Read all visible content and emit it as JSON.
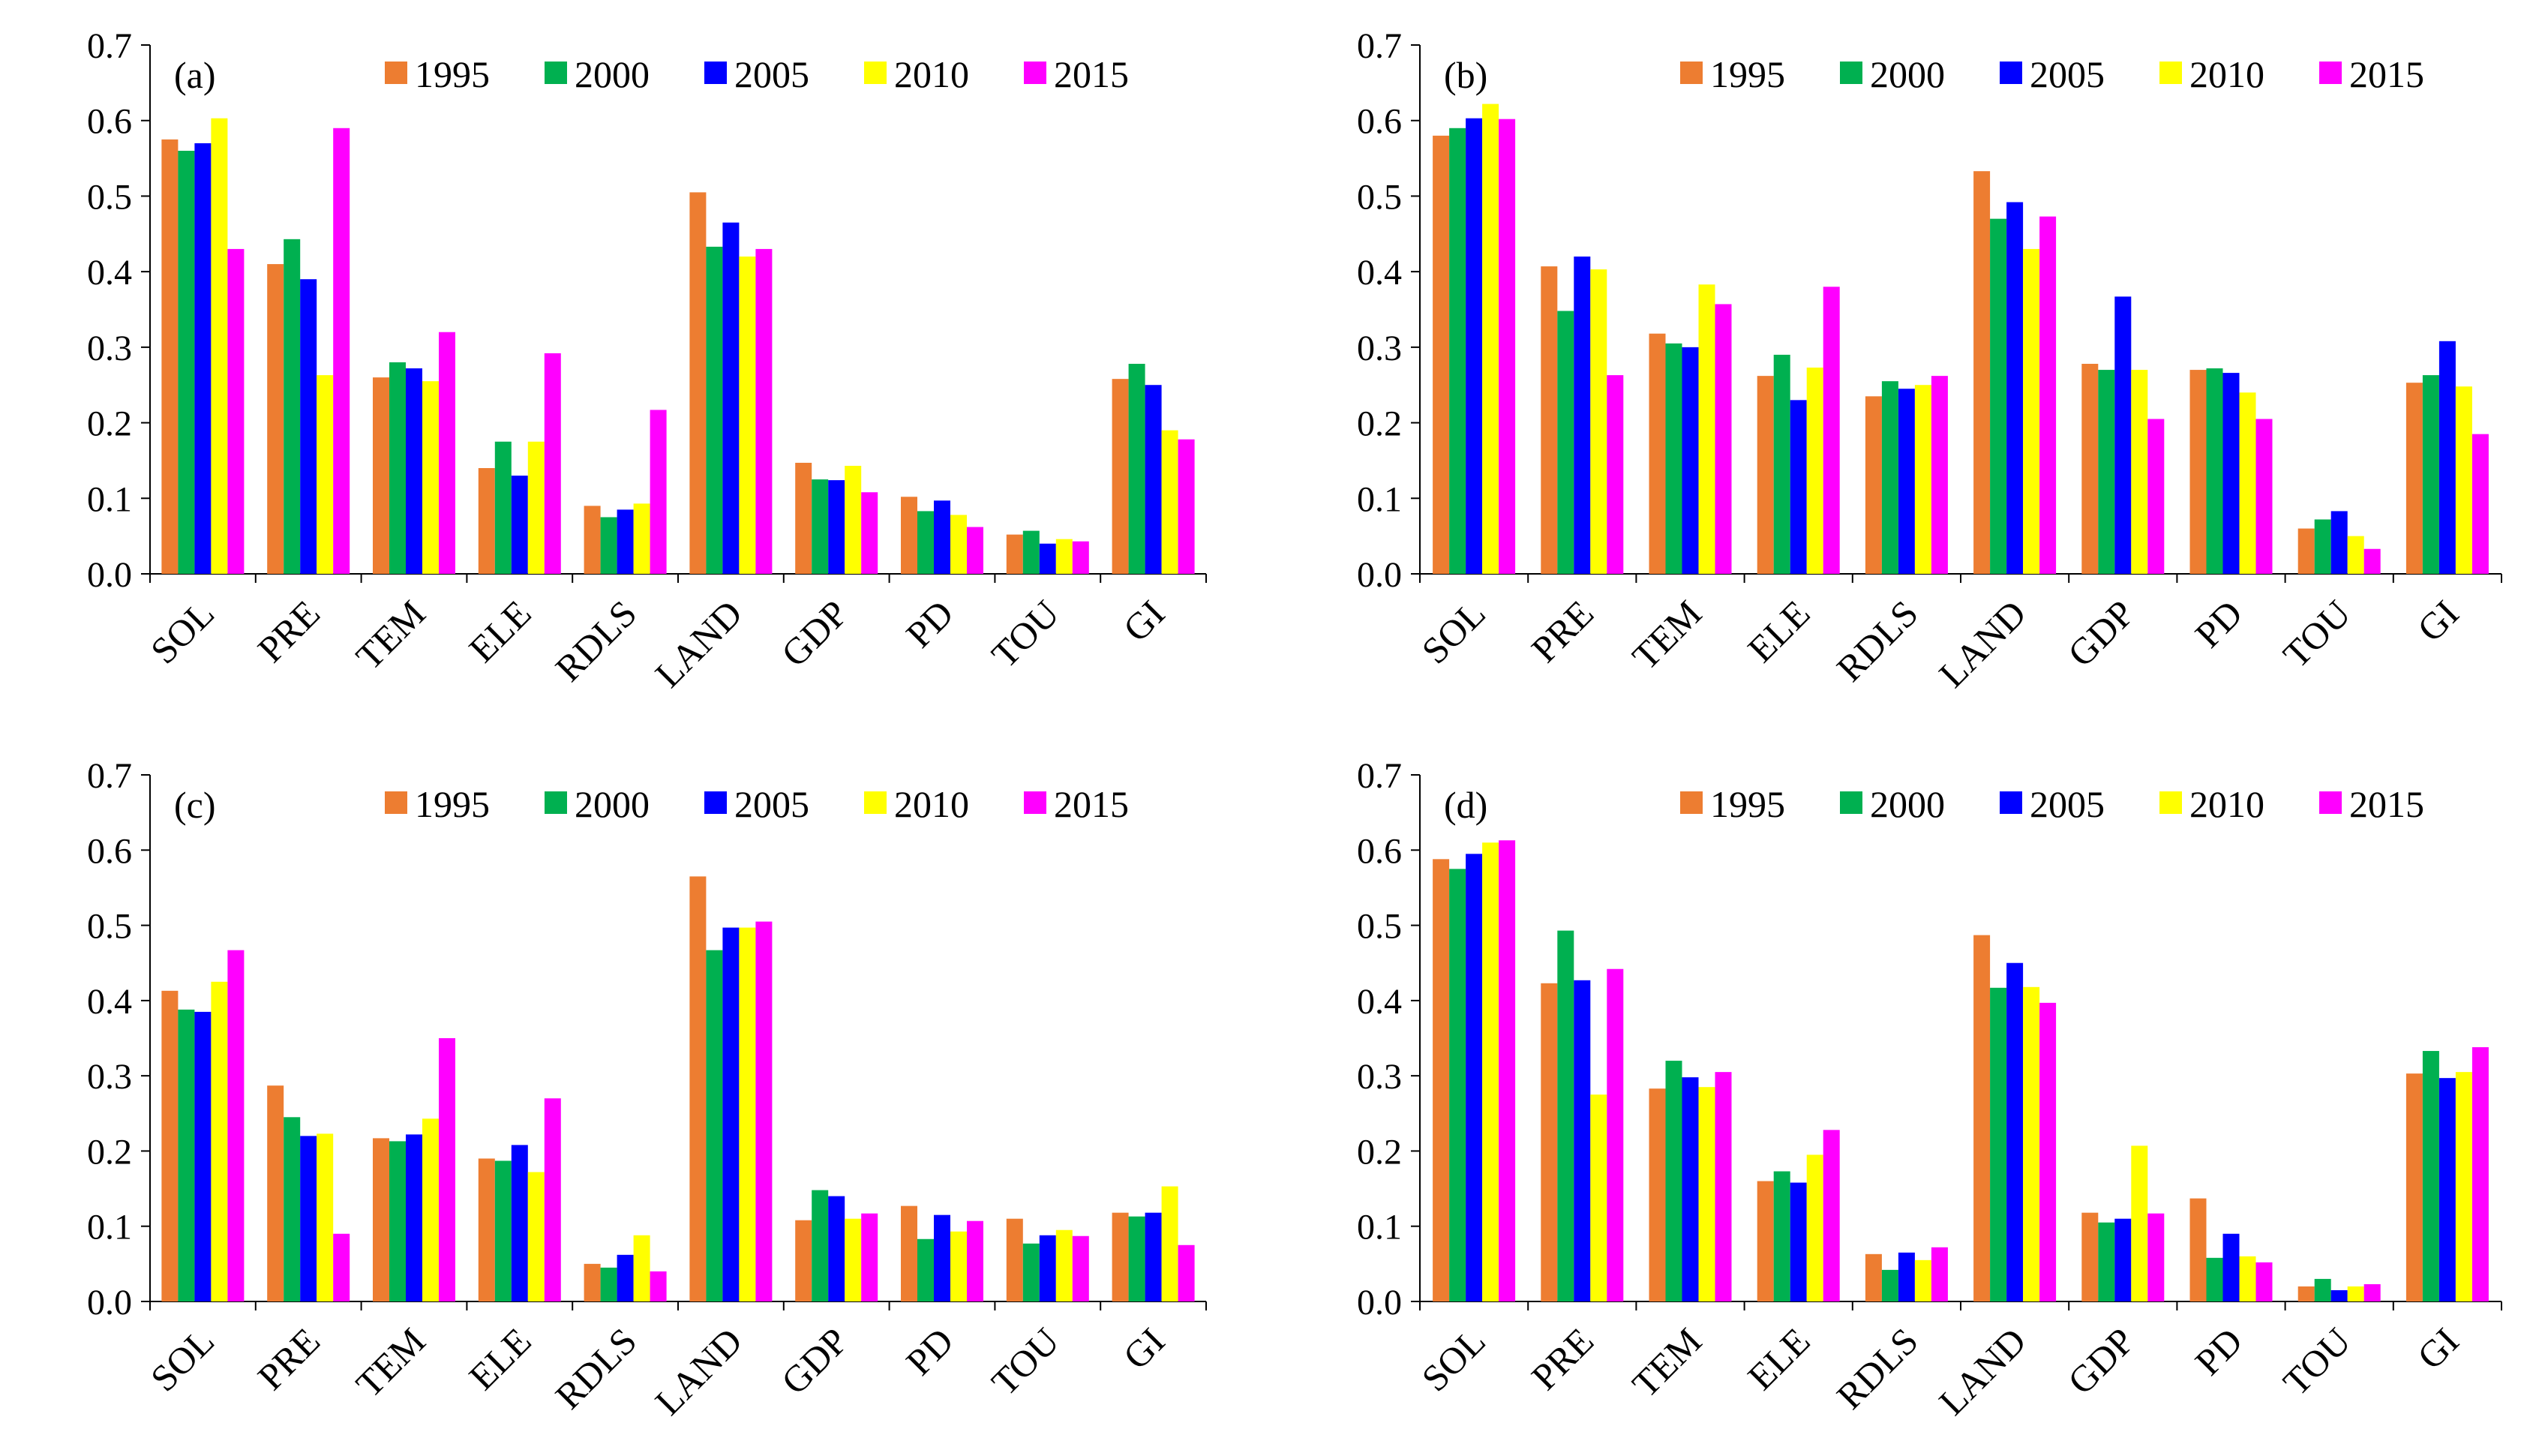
{
  "chart_data": [
    {
      "type": "bar",
      "panel_label": "(a)",
      "categories": [
        "SOL",
        "PRE",
        "TEM",
        "ELE",
        "RDLS",
        "LAND",
        "GDP",
        "PD",
        "TOU",
        "GI"
      ],
      "ylim": [
        0,
        0.7
      ],
      "yticks": [
        "0.0",
        "0.1",
        "0.2",
        "0.3",
        "0.4",
        "0.5",
        "0.6",
        "0.7"
      ],
      "legend_position": "top-right",
      "series": [
        {
          "name": "1995",
          "color": "#ED7D31",
          "values": [
            0.575,
            0.41,
            0.26,
            0.14,
            0.09,
            0.505,
            0.147,
            0.102,
            0.052,
            0.258
          ]
        },
        {
          "name": "2000",
          "color": "#00B050",
          "values": [
            0.56,
            0.443,
            0.28,
            0.175,
            0.075,
            0.433,
            0.125,
            0.083,
            0.057,
            0.278
          ]
        },
        {
          "name": "2005",
          "color": "#0000FF",
          "values": [
            0.57,
            0.39,
            0.272,
            0.13,
            0.085,
            0.465,
            0.124,
            0.097,
            0.04,
            0.25
          ]
        },
        {
          "name": "2010",
          "color": "#FFFF00",
          "values": [
            0.603,
            0.263,
            0.255,
            0.175,
            0.093,
            0.42,
            0.143,
            0.078,
            0.046,
            0.19
          ]
        },
        {
          "name": "2015",
          "color": "#FF00FF",
          "values": [
            0.43,
            0.59,
            0.32,
            0.292,
            0.217,
            0.43,
            0.108,
            0.062,
            0.043,
            0.178
          ]
        }
      ]
    },
    {
      "type": "bar",
      "panel_label": "(b)",
      "categories": [
        "SOL",
        "PRE",
        "TEM",
        "ELE",
        "RDLS",
        "LAND",
        "GDP",
        "PD",
        "TOU",
        "GI"
      ],
      "ylim": [
        0,
        0.7
      ],
      "yticks": [
        "0.0",
        "0.1",
        "0.2",
        "0.3",
        "0.4",
        "0.5",
        "0.6",
        "0.7"
      ],
      "legend_position": "top-right",
      "series": [
        {
          "name": "1995",
          "color": "#ED7D31",
          "values": [
            0.58,
            0.407,
            0.318,
            0.262,
            0.235,
            0.533,
            0.278,
            0.27,
            0.06,
            0.253
          ]
        },
        {
          "name": "2000",
          "color": "#00B050",
          "values": [
            0.59,
            0.348,
            0.305,
            0.29,
            0.255,
            0.47,
            0.27,
            0.272,
            0.072,
            0.263
          ]
        },
        {
          "name": "2005",
          "color": "#0000FF",
          "values": [
            0.603,
            0.42,
            0.3,
            0.23,
            0.245,
            0.492,
            0.367,
            0.266,
            0.083,
            0.308
          ]
        },
        {
          "name": "2010",
          "color": "#FFFF00",
          "values": [
            0.622,
            0.403,
            0.383,
            0.273,
            0.25,
            0.43,
            0.27,
            0.24,
            0.05,
            0.248
          ]
        },
        {
          "name": "2015",
          "color": "#FF00FF",
          "values": [
            0.602,
            0.263,
            0.357,
            0.38,
            0.262,
            0.473,
            0.205,
            0.205,
            0.033,
            0.185
          ]
        }
      ]
    },
    {
      "type": "bar",
      "panel_label": "(c)",
      "categories": [
        "SOL",
        "PRE",
        "TEM",
        "ELE",
        "RDLS",
        "LAND",
        "GDP",
        "PD",
        "TOU",
        "GI"
      ],
      "ylim": [
        0,
        0.7
      ],
      "yticks": [
        "0.0",
        "0.1",
        "0.2",
        "0.3",
        "0.4",
        "0.5",
        "0.6",
        "0.7"
      ],
      "legend_position": "top-right",
      "series": [
        {
          "name": "1995",
          "color": "#ED7D31",
          "values": [
            0.413,
            0.287,
            0.217,
            0.19,
            0.05,
            0.565,
            0.108,
            0.127,
            0.11,
            0.118
          ]
        },
        {
          "name": "2000",
          "color": "#00B050",
          "values": [
            0.388,
            0.245,
            0.213,
            0.187,
            0.045,
            0.467,
            0.148,
            0.083,
            0.077,
            0.113
          ]
        },
        {
          "name": "2005",
          "color": "#0000FF",
          "values": [
            0.385,
            0.22,
            0.222,
            0.208,
            0.062,
            0.497,
            0.14,
            0.115,
            0.088,
            0.118
          ]
        },
        {
          "name": "2010",
          "color": "#FFFF00",
          "values": [
            0.425,
            0.223,
            0.243,
            0.172,
            0.088,
            0.497,
            0.11,
            0.093,
            0.095,
            0.153
          ]
        },
        {
          "name": "2015",
          "color": "#FF00FF",
          "values": [
            0.467,
            0.09,
            0.35,
            0.27,
            0.04,
            0.505,
            0.117,
            0.107,
            0.087,
            0.075
          ]
        }
      ]
    },
    {
      "type": "bar",
      "panel_label": "(d)",
      "categories": [
        "SOL",
        "PRE",
        "TEM",
        "ELE",
        "RDLS",
        "LAND",
        "GDP",
        "PD",
        "TOU",
        "GI"
      ],
      "ylim": [
        0,
        0.7
      ],
      "yticks": [
        "0.0",
        "0.1",
        "0.2",
        "0.3",
        "0.4",
        "0.5",
        "0.6",
        "0.7"
      ],
      "legend_position": "top-right",
      "series": [
        {
          "name": "1995",
          "color": "#ED7D31",
          "values": [
            0.588,
            0.423,
            0.283,
            0.16,
            0.063,
            0.487,
            0.118,
            0.137,
            0.02,
            0.303
          ]
        },
        {
          "name": "2000",
          "color": "#00B050",
          "values": [
            0.575,
            0.493,
            0.32,
            0.173,
            0.042,
            0.417,
            0.105,
            0.058,
            0.03,
            0.333
          ]
        },
        {
          "name": "2005",
          "color": "#0000FF",
          "values": [
            0.595,
            0.427,
            0.298,
            0.158,
            0.065,
            0.45,
            0.11,
            0.09,
            0.015,
            0.297
          ]
        },
        {
          "name": "2010",
          "color": "#FFFF00",
          "values": [
            0.61,
            0.275,
            0.285,
            0.195,
            0.055,
            0.418,
            0.207,
            0.06,
            0.02,
            0.305
          ]
        },
        {
          "name": "2015",
          "color": "#FF00FF",
          "values": [
            0.613,
            0.442,
            0.305,
            0.228,
            0.072,
            0.397,
            0.117,
            0.052,
            0.023,
            0.338
          ]
        }
      ]
    }
  ]
}
